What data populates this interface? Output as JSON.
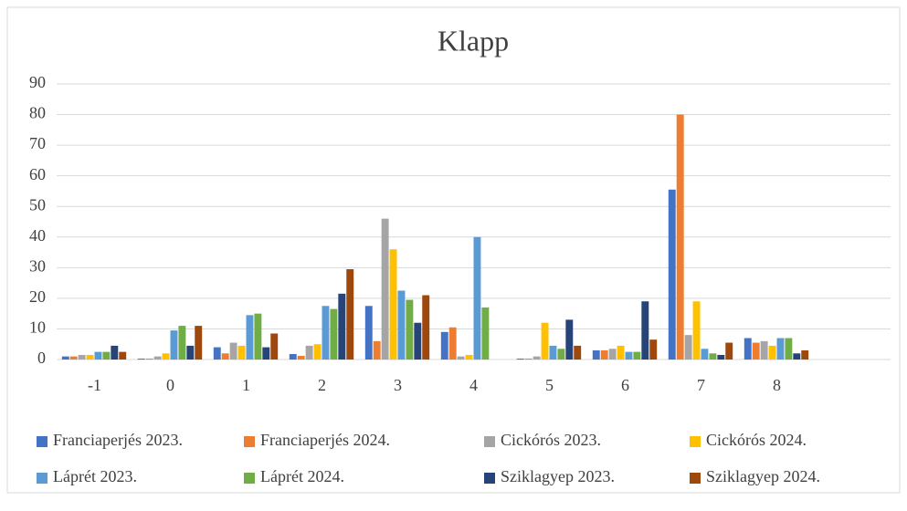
{
  "chart_data": {
    "type": "bar",
    "title": "Klapp",
    "categories": [
      "-1",
      "0",
      "1",
      "2",
      "3",
      "4",
      "5",
      "6",
      "7",
      "8",
      null
    ],
    "series": [
      {
        "name": "Franciaperjés 2023.",
        "color": "#4472c4",
        "values": [
          1,
          0.3,
          4,
          1.8,
          17.5,
          9,
          0.3,
          3,
          55.5,
          7,
          null
        ]
      },
      {
        "name": "Franciaperjés 2024.",
        "color": "#ed7d31",
        "values": [
          1,
          0.3,
          2,
          1.2,
          6,
          10.5,
          0.3,
          3,
          80,
          5.5,
          null
        ]
      },
      {
        "name": "Cickórós 2023.",
        "color": "#a5a5a5",
        "values": [
          1.5,
          1,
          5.5,
          4.5,
          46,
          1,
          1,
          3.5,
          8,
          6,
          null
        ]
      },
      {
        "name": "Cickórós 2024.",
        "color": "#ffc000",
        "values": [
          1.5,
          2,
          4.5,
          5,
          36,
          1.5,
          12,
          4.5,
          19,
          4.5,
          null
        ]
      },
      {
        "name": "Láprét 2023.",
        "color": "#5b9bd5",
        "values": [
          2.5,
          9.5,
          14.5,
          17.5,
          22.5,
          40,
          4.5,
          2.5,
          3.5,
          7,
          null
        ]
      },
      {
        "name": "Láprét 2024.",
        "color": "#70ad47",
        "values": [
          2.5,
          11,
          15,
          16.5,
          19.5,
          17,
          3.5,
          2.5,
          2,
          7,
          null
        ]
      },
      {
        "name": "Sziklagyep 2023.",
        "color": "#264478",
        "values": [
          4.5,
          4.5,
          4,
          21.5,
          12,
          0,
          13,
          19,
          1.5,
          2,
          null
        ]
      },
      {
        "name": "Sziklagyep 2024.",
        "color": "#9e480e",
        "values": [
          2.5,
          11,
          8.5,
          29.5,
          21,
          0,
          4.5,
          6.5,
          5.5,
          3,
          null
        ]
      }
    ],
    "ylim": [
      0,
      90
    ],
    "yticks": [
      0,
      10,
      20,
      30,
      40,
      50,
      60,
      70,
      80,
      90
    ],
    "grid": true,
    "legend": "bottom"
  }
}
